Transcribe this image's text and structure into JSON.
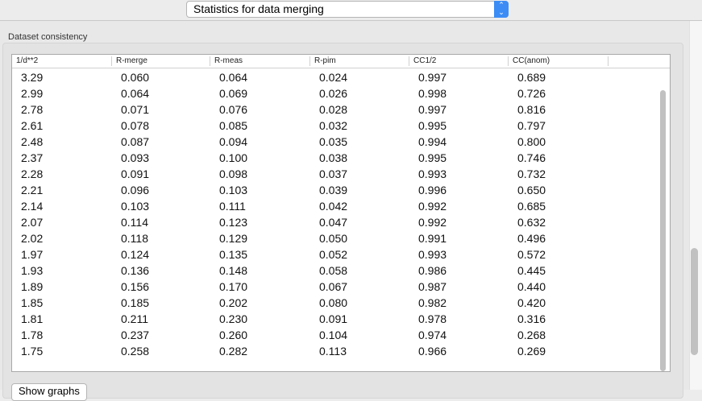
{
  "header": {
    "mode_select": "Statistics for data merging"
  },
  "group": {
    "label": "Dataset consistency"
  },
  "table": {
    "columns": [
      "1/d**2",
      "R-merge",
      "R-meas",
      "R-pim",
      "CC1/2",
      "CC(anom)"
    ],
    "rows": [
      [
        "3.29",
        "0.060",
        "0.064",
        "0.024",
        "0.997",
        "0.689"
      ],
      [
        "2.99",
        "0.064",
        "0.069",
        "0.026",
        "0.998",
        "0.726"
      ],
      [
        "2.78",
        "0.071",
        "0.076",
        "0.028",
        "0.997",
        "0.816"
      ],
      [
        "2.61",
        "0.078",
        "0.085",
        "0.032",
        "0.995",
        "0.797"
      ],
      [
        "2.48",
        "0.087",
        "0.094",
        "0.035",
        "0.994",
        "0.800"
      ],
      [
        "2.37",
        "0.093",
        "0.100",
        "0.038",
        "0.995",
        "0.746"
      ],
      [
        "2.28",
        "0.091",
        "0.098",
        "0.037",
        "0.993",
        "0.732"
      ],
      [
        "2.21",
        "0.096",
        "0.103",
        "0.039",
        "0.996",
        "0.650"
      ],
      [
        "2.14",
        "0.103",
        "0.111",
        "0.042",
        "0.992",
        "0.685"
      ],
      [
        "2.07",
        "0.114",
        "0.123",
        "0.047",
        "0.992",
        "0.632"
      ],
      [
        "2.02",
        "0.118",
        "0.129",
        "0.050",
        "0.991",
        "0.496"
      ],
      [
        "1.97",
        "0.124",
        "0.135",
        "0.052",
        "0.993",
        "0.572"
      ],
      [
        "1.93",
        "0.136",
        "0.148",
        "0.058",
        "0.986",
        "0.445"
      ],
      [
        "1.89",
        "0.156",
        "0.170",
        "0.067",
        "0.987",
        "0.440"
      ],
      [
        "1.85",
        "0.185",
        "0.202",
        "0.080",
        "0.982",
        "0.420"
      ],
      [
        "1.81",
        "0.211",
        "0.230",
        "0.091",
        "0.978",
        "0.316"
      ],
      [
        "1.78",
        "0.237",
        "0.260",
        "0.104",
        "0.974",
        "0.268"
      ],
      [
        "1.75",
        "0.258",
        "0.282",
        "0.113",
        "0.966",
        "0.269"
      ]
    ]
  },
  "buttons": {
    "show_graphs": "Show graphs"
  }
}
